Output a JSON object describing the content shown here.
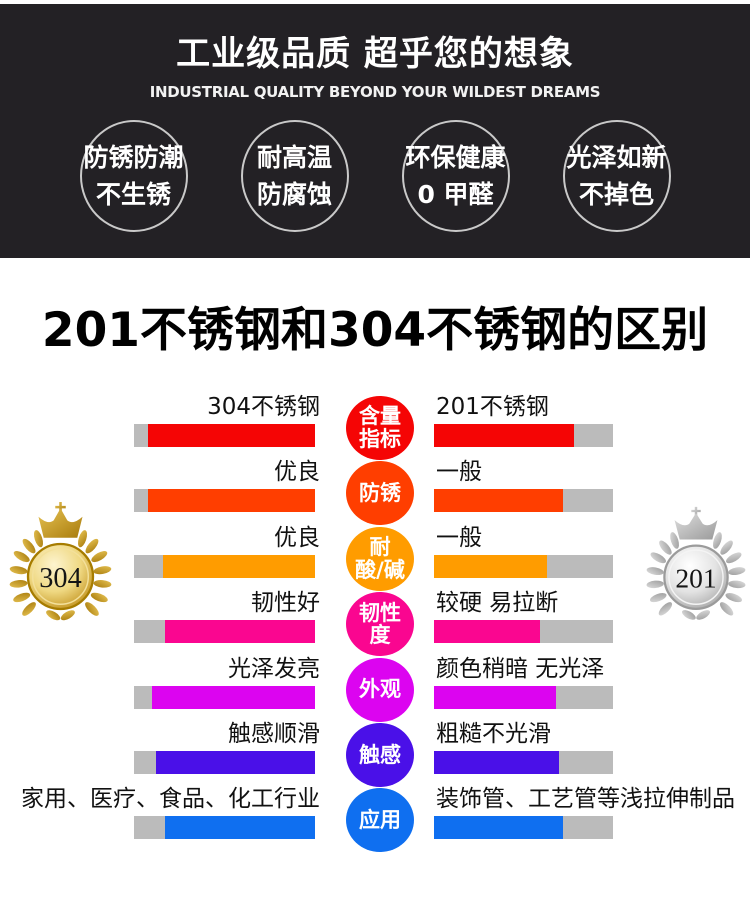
{
  "hero": {
    "title": "工业级品质 超乎您的想象",
    "subtitle": "INDUSTRIAL QUALITY BEYOND YOUR WILDEST DREAMS",
    "background_color": "#232125",
    "features": [
      {
        "lines": "防锈防潮\n不生锈"
      },
      {
        "lines": "耐高温\n防腐蚀"
      },
      {
        "lines": "环保健康\n0 甲醛"
      },
      {
        "lines": "光泽如新\n不掉色"
      }
    ]
  },
  "section": {
    "title": "201不锈钢和304不锈钢的区别"
  },
  "comparison": {
    "left_product": "304不锈钢",
    "right_product": "201不锈钢",
    "track_color": "#bbbbbb",
    "badges": {
      "left": {
        "value": "304",
        "style": "gold"
      },
      "right": {
        "value": "201",
        "style": "silver"
      }
    },
    "rows": [
      {
        "metric": "含量\n指标",
        "color": "#f50505",
        "left": "304不锈钢",
        "right": "201不锈钢",
        "left_fill": 92,
        "right_fill": 78
      },
      {
        "metric": "防锈",
        "color": "#ff3e00",
        "left": "优良",
        "right": "一般",
        "left_fill": 92,
        "right_fill": 72
      },
      {
        "metric": "耐\n酸/碱",
        "color": "#ff9c00",
        "left": "优良",
        "right": "一般",
        "left_fill": 84,
        "right_fill": 63
      },
      {
        "metric": "韧性\n度",
        "color": "#fa0690",
        "left": "韧性好",
        "right": "较硬 易拉断",
        "left_fill": 83,
        "right_fill": 59
      },
      {
        "metric": "外观",
        "color": "#dc04f0",
        "left": "光泽发亮",
        "right": "颜色稍暗 无光泽",
        "left_fill": 90,
        "right_fill": 68
      },
      {
        "metric": "触感",
        "color": "#4a10e8",
        "left": "触感顺滑",
        "right": "粗糙不光滑",
        "left_fill": 88,
        "right_fill": 70
      },
      {
        "metric": "应用",
        "color": "#0f6ff0",
        "left": "家用、医疗、食品、化工行业",
        "right": "装饰管、工艺管等浅拉伸制品",
        "left_fill": 83,
        "right_fill": 72
      }
    ]
  }
}
